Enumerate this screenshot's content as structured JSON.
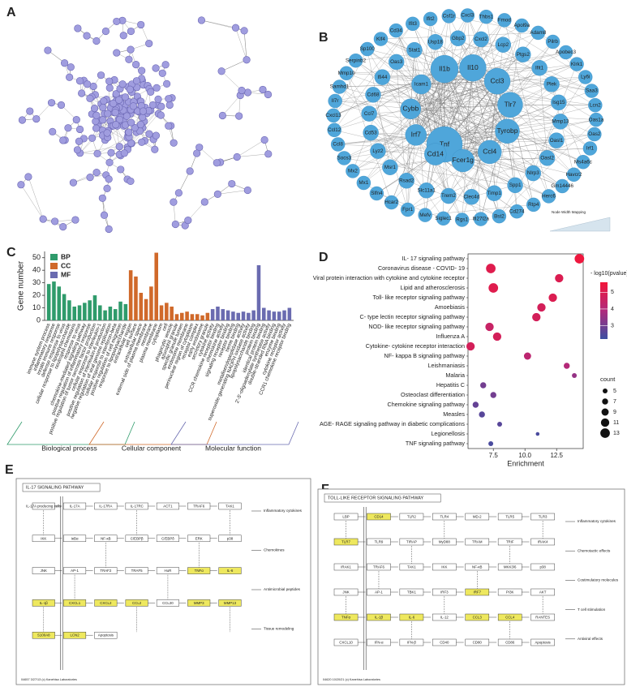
{
  "panel_labels": [
    "A",
    "B",
    "C",
    "D",
    "E",
    "F"
  ],
  "network_b": {
    "legend": "Node Width Mapping",
    "nodes": [
      "Tnf",
      "Il1b",
      "Il10",
      "Ccl3",
      "Tlr7",
      "Tyrobp",
      "Ccl4",
      "Fcer1g",
      "Cd14",
      "Irf7",
      "Cybb",
      "Icam1",
      "Cxcl2",
      "Lcp2",
      "Ptgs2",
      "Ifit1",
      "Plek",
      "Isg15",
      "Mmp13",
      "Oasl1",
      "Oasl2",
      "Nlrp3",
      "Spp1",
      "Timp1",
      "Clec4d",
      "Trem2",
      "Slc11a1",
      "Rsad2",
      "Msr1",
      "Lyz2",
      "Cd53",
      "Ccl7",
      "Cd68",
      "Ifi44",
      "Oas3",
      "Stat1",
      "Usp18",
      "Gbp2",
      "Cxcl3",
      "Thbs1",
      "Fmod",
      "Apol9a",
      "Adam8",
      "Pilrb",
      "Apobec3",
      "Klrk1",
      "Ly6i",
      "Saa3",
      "Lcn2",
      "Oas1a",
      "Oas2",
      "Irf1",
      "Ms4a6c",
      "Havcr2",
      "Gm14446",
      "Herc6",
      "Rtp4",
      "Cd274",
      "Bst2",
      "Ifi27l2a",
      "Rgs1",
      "Siglec1",
      "Mefv",
      "Fpr1",
      "Hcar2",
      "Slfn4",
      "Mx1",
      "Mx2",
      "Socs3",
      "Ccl8",
      "Ccl12",
      "Cxcl13",
      "Il7r",
      "Samhd1",
      "Mmp10",
      "Serpinb2",
      "Sp100",
      "Klf4",
      "Cd34",
      "Ifit3",
      "Ifit2",
      "Csf1r"
    ]
  },
  "chart_data": [
    {
      "type": "bar",
      "ylabel": "Gene number",
      "ylim": [
        0,
        55
      ],
      "yticks": [
        0,
        10,
        20,
        30,
        40,
        50
      ],
      "categories": [
        "immune system process",
        "inflammatory response",
        "innate immune response",
        "defense response to virus",
        "cellular response to lipopolysaccharide",
        "neutrophil chemotaxis",
        "response to virus",
        "chemokine-mediated signaling pathway",
        "positive regulation of inflammatory response",
        "positive regulation of tumor necrosis factor production",
        "cellular response to interleukin-1",
        "positive regulation of interleukin-6 production",
        "negative regulation of viral genome replication",
        "cellular response to interferon-beta",
        "positive regulation of cell migration",
        "response to lipopolysaccharide",
        "extracellular region",
        "cell surface",
        "extracellular space",
        "external side of plasma membrane",
        "membrane",
        "plasma membrane",
        "cytoplasm",
        "cell",
        "phagocytic vesicle",
        "azurophil granule",
        "specific granule lumen",
        "endosome membrane",
        "perinuclear region of cytoplasm",
        "receptor complex",
        "early endosome",
        "secretory granule",
        "cytokine activity",
        "CCR chemokine receptor binding",
        "chemokine activity",
        "signaling receptor binding",
        "receptor binding",
        "heme binding",
        "metalloendopeptidase activity",
        "superoxide-generating NADPH oxidase activity",
        "lipopolysaccharide binding",
        "protein binding",
        "identical protein binding",
        "2'-5'-oligoadenylate synthetase activity",
        "double-stranded RNA binding",
        "enzyme binding",
        "cytokine receptor activity",
        "CCR1 chemokine receptor binding"
      ],
      "series": [
        {
          "name": "BP",
          "color": "#2f9b6b",
          "values": [
            29,
            31,
            27,
            21,
            16,
            11,
            12,
            14,
            16,
            20,
            12,
            8,
            11,
            9,
            15,
            13,
            null,
            null,
            null,
            null,
            null,
            null,
            null,
            null,
            null,
            null,
            null,
            null,
            null,
            null,
            null,
            null,
            null,
            null,
            null,
            null,
            null,
            null,
            null,
            null,
            null,
            null,
            null,
            null,
            null,
            null,
            null,
            null
          ]
        },
        {
          "name": "CC",
          "color": "#d0692a",
          "values": [
            null,
            null,
            null,
            null,
            null,
            null,
            null,
            null,
            null,
            null,
            null,
            null,
            null,
            null,
            null,
            null,
            40,
            35,
            22,
            17,
            27,
            54,
            12,
            14,
            11,
            5,
            6,
            7,
            5,
            5,
            4,
            6,
            null,
            null,
            null,
            null,
            null,
            null,
            null,
            null,
            null,
            null,
            null,
            null,
            null,
            null,
            null,
            null
          ]
        },
        {
          "name": "MF",
          "color": "#6a6bb0",
          "values": [
            null,
            null,
            null,
            null,
            null,
            null,
            null,
            null,
            null,
            null,
            null,
            null,
            null,
            null,
            null,
            null,
            null,
            null,
            null,
            null,
            null,
            null,
            null,
            null,
            null,
            null,
            null,
            null,
            null,
            null,
            null,
            null,
            9,
            11,
            9,
            8,
            7,
            6,
            7,
            6,
            8,
            44,
            10,
            8,
            7,
            7,
            8,
            10
          ]
        }
      ],
      "group_labels": [
        "Biological process",
        "Cellular component",
        "Molecular function"
      ]
    },
    {
      "type": "dot",
      "xlabel": "Enrichment",
      "categories": [
        "IL- 17 signaling pathway",
        "Coronavirus disease - COVID- 19",
        "Viral protein interaction with cytokine and cytokine receptor",
        "Lipid and atherosclerosis",
        "Toll- like receptor signaling pathway",
        "Amoebiasis",
        "C- type lectin receptor signaling pathway",
        "NOD- like receptor signaling pathway",
        "Influenza A",
        "Cytokine- cytokine receptor interaction",
        "NF- kappa B signaling pathway",
        "Leishmaniasis",
        "Malaria",
        "Hepatitis C",
        "Osteoclast differentiation",
        "Chemokine signaling pathway",
        "Measles",
        "AGE- RAGE signaling pathway in diabetic complications",
        "Legionellosis",
        "TNF signaling pathway"
      ],
      "x": [
        14.3,
        7.3,
        12.7,
        7.5,
        12.2,
        11.3,
        10.9,
        7.2,
        7.8,
        5.7,
        10.2,
        13.3,
        13.9,
        6.7,
        7.5,
        6.1,
        6.6,
        8.0,
        11.0,
        7.3
      ],
      "color_values": [
        5.5,
        5.1,
        5.0,
        5.1,
        5.0,
        4.8,
        4.8,
        4.5,
        4.8,
        4.8,
        4.2,
        4.0,
        3.5,
        3.0,
        3.0,
        2.8,
        2.6,
        2.6,
        2.4,
        2.4
      ],
      "size_values": [
        13,
        13,
        11,
        13,
        11,
        11,
        11,
        11,
        11,
        11,
        9,
        7,
        5,
        7,
        7,
        7,
        7,
        5,
        3,
        5
      ],
      "xlim": [
        5.5,
        14.6
      ],
      "xticks": [
        {
          "value": 7.5,
          "label": "7.5"
        },
        {
          "value": 10,
          "label": "10.0"
        },
        {
          "value": 12.5,
          "label": "12.5"
        }
      ],
      "color_title": "- log10(pvalue)",
      "color_lim": [
        2.2,
        5.6
      ],
      "color_ticks": [
        3,
        4,
        5
      ],
      "colors": [
        "#3c4fa2",
        "#b02a7c",
        "#f2163a"
      ],
      "size_title": "count",
      "size_ticks": [
        5,
        7,
        9,
        11,
        13
      ]
    }
  ],
  "pathway_e": {
    "title": "IL-17 SIGNALING PATHWAY",
    "highlight_color": "#eee85e",
    "nodes": [
      {
        "label": "IL-17A producing cells",
        "highlight": false
      },
      {
        "label": "IL-17A",
        "highlight": false
      },
      {
        "label": "IL-17RA",
        "highlight": false
      },
      {
        "label": "IL-17RC",
        "highlight": false
      },
      {
        "label": "ACT1",
        "highlight": false
      },
      {
        "label": "TRAF6",
        "highlight": false
      },
      {
        "label": "TAK1",
        "highlight": false
      },
      {
        "label": "IKK",
        "highlight": false
      },
      {
        "label": "IκBα",
        "highlight": false
      },
      {
        "label": "NF-κB",
        "highlight": false
      },
      {
        "label": "C/EBPβ",
        "highlight": false
      },
      {
        "label": "C/EBPδ",
        "highlight": false
      },
      {
        "label": "ERK",
        "highlight": false
      },
      {
        "label": "p38",
        "highlight": false
      },
      {
        "label": "JNK",
        "highlight": false
      },
      {
        "label": "AP-1",
        "highlight": false
      },
      {
        "label": "TRAF2",
        "highlight": false
      },
      {
        "label": "TRAF5",
        "highlight": false
      },
      {
        "label": "HuR",
        "highlight": false
      },
      {
        "label": "TNFα",
        "highlight": true
      },
      {
        "label": "IL-6",
        "highlight": true
      },
      {
        "label": "IL-1β",
        "highlight": true
      },
      {
        "label": "CXCL1",
        "highlight": true
      },
      {
        "label": "CXCL2",
        "highlight": true
      },
      {
        "label": "CCL2",
        "highlight": true
      },
      {
        "label": "CCL20",
        "highlight": false
      },
      {
        "label": "MMP3",
        "highlight": true
      },
      {
        "label": "MMP13",
        "highlight": true
      },
      {
        "label": "S100A8",
        "highlight": true
      },
      {
        "label": "LCN2",
        "highlight": true
      },
      {
        "label": "Apoptosis",
        "highlight": false
      }
    ],
    "side_labels": [
      "Inflammatory cytokines",
      "Chemokines",
      "Antimicrobial peptides",
      "Tissue remodeling"
    ],
    "footer": "04657 3/27/13 (c) Kanehisa Laboratories"
  },
  "pathway_f": {
    "title": "TOLL-LIKE RECEPTOR SIGNALING PATHWAY",
    "highlight_color": "#eee85e",
    "nodes": [
      {
        "label": "LBP",
        "highlight": false
      },
      {
        "label": "CD14",
        "highlight": true
      },
      {
        "label": "TLR2",
        "highlight": false
      },
      {
        "label": "TLR4",
        "highlight": false
      },
      {
        "label": "MD-2",
        "highlight": false
      },
      {
        "label": "TLR5",
        "highlight": false
      },
      {
        "label": "TLR3",
        "highlight": false
      },
      {
        "label": "TLR7",
        "highlight": true
      },
      {
        "label": "TLR9",
        "highlight": false
      },
      {
        "label": "TIRAP",
        "highlight": false
      },
      {
        "label": "MyD88",
        "highlight": false
      },
      {
        "label": "TRAM",
        "highlight": false
      },
      {
        "label": "TRIF",
        "highlight": false
      },
      {
        "label": "IRAK4",
        "highlight": false
      },
      {
        "label": "IRAK1",
        "highlight": false
      },
      {
        "label": "TRAF6",
        "highlight": false
      },
      {
        "label": "TAK1",
        "highlight": false
      },
      {
        "label": "IKK",
        "highlight": false
      },
      {
        "label": "NF-κB",
        "highlight": false
      },
      {
        "label": "MKK3/6",
        "highlight": false
      },
      {
        "label": "p38",
        "highlight": false
      },
      {
        "label": "JNK",
        "highlight": false
      },
      {
        "label": "AP-1",
        "highlight": false
      },
      {
        "label": "TBK1",
        "highlight": false
      },
      {
        "label": "IRF3",
        "highlight": false
      },
      {
        "label": "IRF7",
        "highlight": true
      },
      {
        "label": "PI3K",
        "highlight": false
      },
      {
        "label": "AKT",
        "highlight": false
      },
      {
        "label": "TNFα",
        "highlight": true
      },
      {
        "label": "IL-1β",
        "highlight": true
      },
      {
        "label": "IL-6",
        "highlight": true
      },
      {
        "label": "IL-12",
        "highlight": false
      },
      {
        "label": "CCL3",
        "highlight": true
      },
      {
        "label": "CCL4",
        "highlight": true
      },
      {
        "label": "RANTES",
        "highlight": false
      },
      {
        "label": "CXCL10",
        "highlight": false
      },
      {
        "label": "IFN-α",
        "highlight": false
      },
      {
        "label": "IFN-β",
        "highlight": false
      },
      {
        "label": "CD40",
        "highlight": false
      },
      {
        "label": "CD80",
        "highlight": false
      },
      {
        "label": "CD86",
        "highlight": false
      },
      {
        "label": "Apoptosis",
        "highlight": false
      }
    ],
    "side_labels": [
      "Inflammatory cytokines",
      "Chemotactic effects",
      "Costimulatory molecules",
      "T cell stimulation",
      "Antiviral effects"
    ],
    "footer": "04620 10/20/21 (c) Kanehisa Laboratories"
  }
}
